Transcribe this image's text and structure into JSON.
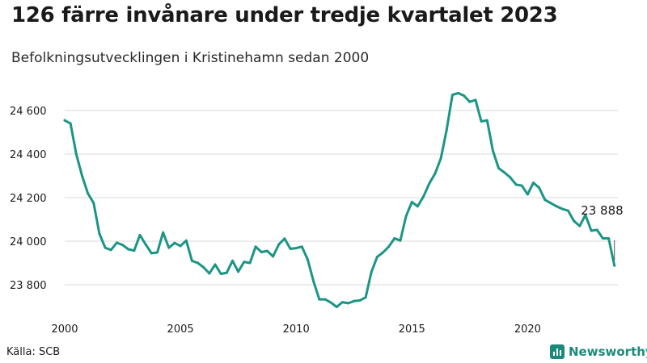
{
  "header": {
    "title": "126 färre invånare under tredje kvartalet 2023",
    "subtitle": "Befolkningsutvecklingen i Kristinehamn sedan 2000"
  },
  "footer": {
    "source": "Källa: SCB",
    "brand": "Newsworthy"
  },
  "colors": {
    "line": "#1b9585",
    "brand": "#1b8a7a",
    "grid": "#d9d9d9"
  },
  "chart_data": {
    "type": "line",
    "title": "126 färre invånare under tredje kvartalet 2023",
    "subtitle": "Befolkningsutvecklingen i Kristinehamn sedan 2000",
    "xlabel": "",
    "ylabel": "",
    "xlim": [
      2000,
      2023.9
    ],
    "ylim": [
      23700,
      24700
    ],
    "y_ticks": [
      23800,
      24000,
      24200,
      24400,
      24600
    ],
    "y_tick_labels": [
      "23 800",
      "24 000",
      "24 200",
      "24 400",
      "24 600"
    ],
    "x_ticks": [
      2000,
      2005,
      2010,
      2015,
      2020
    ],
    "x_tick_labels": [
      "2000",
      "2005",
      "2010",
      "2015",
      "2020"
    ],
    "grid": "horizontal",
    "annotation": {
      "x": 2023.75,
      "y": 23888,
      "label": "23 888"
    },
    "series": [
      {
        "x": [
          2000.0,
          2000.25,
          2000.5,
          2000.75,
          2001.0,
          2001.25,
          2001.5,
          2001.75,
          2002.0,
          2002.25,
          2002.5,
          2002.75,
          2003.0,
          2003.25,
          2003.5,
          2003.75,
          2004.0,
          2004.25,
          2004.5,
          2004.75,
          2005.0,
          2005.25,
          2005.5,
          2005.75,
          2006.0,
          2006.25,
          2006.5,
          2006.75,
          2007.0,
          2007.25,
          2007.5,
          2007.75,
          2008.0,
          2008.25,
          2008.5,
          2008.75,
          2009.0,
          2009.25,
          2009.5,
          2009.75,
          2010.0,
          2010.25,
          2010.5,
          2010.75,
          2011.0,
          2011.25,
          2011.5,
          2011.75,
          2012.0,
          2012.25,
          2012.5,
          2012.75,
          2013.0,
          2013.25,
          2013.5,
          2013.75,
          2014.0,
          2014.25,
          2014.5,
          2014.75,
          2015.0,
          2015.25,
          2015.5,
          2015.75,
          2016.0,
          2016.25,
          2016.5,
          2016.75,
          2017.0,
          2017.25,
          2017.5,
          2017.75,
          2018.0,
          2018.25,
          2018.5,
          2018.75,
          2019.0,
          2019.25,
          2019.5,
          2019.75,
          2020.0,
          2020.25,
          2020.5,
          2020.75,
          2021.0,
          2021.25,
          2021.5,
          2021.75,
          2022.0,
          2022.25,
          2022.5,
          2022.75,
          2023.0,
          2023.25,
          2023.5,
          2023.75
        ],
        "y": [
          24555,
          24540,
          24400,
          24300,
          24220,
          24175,
          24035,
          23970,
          23960,
          23993,
          23983,
          23963,
          23957,
          24028,
          23985,
          23945,
          23948,
          24040,
          23970,
          23992,
          23978,
          24003,
          23910,
          23900,
          23880,
          23852,
          23893,
          23850,
          23855,
          23910,
          23860,
          23905,
          23900,
          23975,
          23950,
          23955,
          23930,
          23985,
          24012,
          23965,
          23968,
          23975,
          23915,
          23815,
          23733,
          23733,
          23718,
          23698,
          23720,
          23715,
          23725,
          23728,
          23742,
          23858,
          23928,
          23948,
          23975,
          24013,
          24003,
          24115,
          24180,
          24160,
          24205,
          24265,
          24310,
          24380,
          24510,
          24672,
          24680,
          24668,
          24640,
          24648,
          24550,
          24555,
          24415,
          24335,
          24315,
          24293,
          24260,
          24255,
          24215,
          24268,
          24245,
          24190,
          24175,
          24160,
          24148,
          24140,
          24093,
          24070,
          24120,
          24048,
          24052,
          24013,
          24013,
          23888
        ]
      }
    ]
  }
}
